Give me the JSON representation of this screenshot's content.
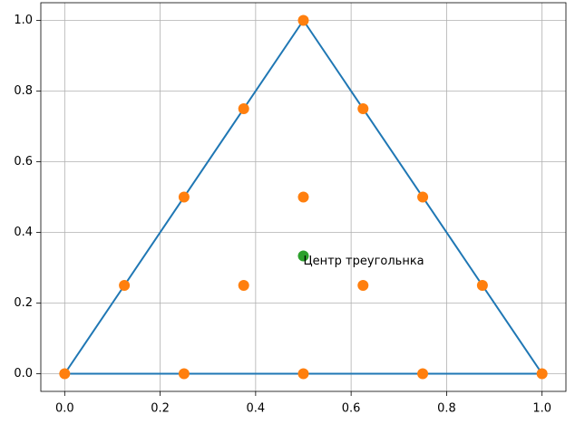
{
  "chart_data": {
    "type": "line",
    "series": [
      {
        "type": "line",
        "color": "#1f77b4",
        "x": [
          0,
          0.5,
          1,
          0
        ],
        "values": [
          0,
          1,
          0,
          0
        ]
      },
      {
        "type": "scatter",
        "color": "#ff7f0e",
        "x": [
          0,
          0.25,
          0.5,
          0.75,
          1,
          0.125,
          0.875,
          0.25,
          0.75,
          0.375,
          0.625,
          0.5,
          0.375,
          0.625,
          0.5
        ],
        "values": [
          0,
          0,
          0,
          0,
          0,
          0.25,
          0.25,
          0.5,
          0.5,
          0.75,
          0.75,
          1,
          0.25,
          0.25,
          0.5
        ]
      },
      {
        "type": "scatter",
        "color": "#2ca02c",
        "x": [
          0.5
        ],
        "values": [
          0.3333
        ]
      }
    ],
    "annotations": [
      {
        "text": "Центр треугольнка",
        "x": 0.5,
        "y": 0.3
      }
    ],
    "xlim": [
      -0.05,
      1.05
    ],
    "ylim": [
      -0.05,
      1.05
    ],
    "xticks": [
      {
        "value": 0,
        "label": "0.0"
      },
      0.2,
      0.4,
      0.6,
      0.8,
      {
        "value": 1,
        "label": "1.0"
      }
    ],
    "yticks": [
      {
        "value": 0,
        "label": "0.0"
      },
      0.2,
      0.4,
      0.6,
      0.8,
      {
        "value": 1,
        "label": "1.0"
      }
    ],
    "grid": true
  }
}
